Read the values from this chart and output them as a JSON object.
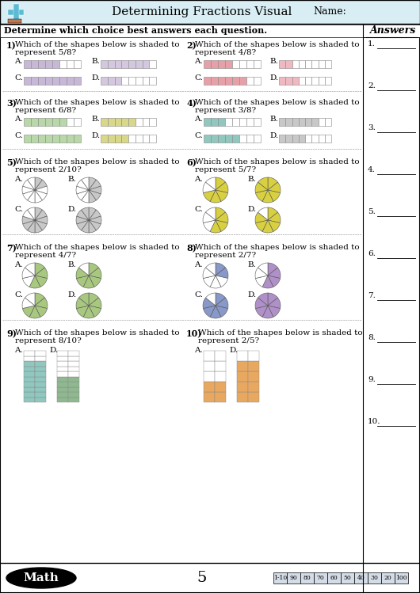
{
  "title": "Determining Fractions Visual",
  "name_label": "Name:",
  "instruction": "Determine which choice best answers each question.",
  "answers_header": "Answers",
  "page_number": "5",
  "score_labels": [
    "1-10",
    "90",
    "80",
    "70",
    "60",
    "50",
    "40",
    "30",
    "20",
    "100"
  ],
  "header_bg": "#d8eef4",
  "plus_color": "#5bbbd4",
  "brick_color": "#c07850",
  "lavender": "#c8b8d8",
  "lavender2": "#d4c8e0",
  "pink": "#e8a0a8",
  "pink2": "#f0b8c0",
  "green_light": "#b8d8a8",
  "yellow_light": "#d8d888",
  "teal_bar": "#90c8c0",
  "blue_bar": "#a8c0d8",
  "gray_light": "#c8c8c8",
  "white": "#ffffff",
  "green_pie": "#a8c880",
  "yellow_pie": "#d8d040",
  "orange_pie": "#e8a040",
  "purple_pie": "#b090c8",
  "teal_pie": "#80b8b0",
  "blue_pie": "#8898c8",
  "orange_tall": "#e8a860",
  "green_tall": "#90b890"
}
